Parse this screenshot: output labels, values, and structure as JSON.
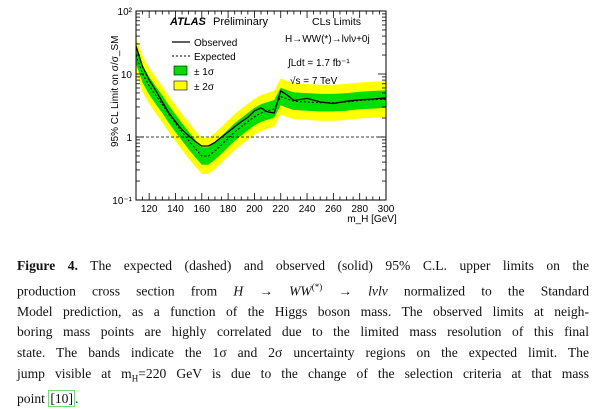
{
  "figure": {
    "experiment": "ATLAS",
    "status": "Preliminary",
    "method": "CLs Limits",
    "process": "H→WW(*)→lνlν+0j",
    "luminosity": "∫Ldt = 1.7 fb⁻¹",
    "energy": "√s = 7 TeV"
  },
  "chart_data": {
    "type": "line",
    "xlabel": "m_H [GeV]",
    "ylabel": "95% CL Limit on σ/σ_SM",
    "xlim": [
      110,
      300
    ],
    "ylim": [
      0.1,
      100
    ],
    "yscale": "log",
    "x_ticks": [
      120,
      140,
      160,
      180,
      200,
      220,
      240,
      260,
      280,
      300
    ],
    "y_ticks": [
      {
        "value": 0.1,
        "label": "10⁻¹"
      },
      {
        "value": 1,
        "label": "1"
      },
      {
        "value": 10,
        "label": "10"
      },
      {
        "value": 100,
        "label": "10²"
      }
    ],
    "reference_line": 1,
    "legend_position": "top-left",
    "legend": [
      "Observed",
      "Expected",
      "± 1σ",
      "± 2σ"
    ],
    "colors": {
      "observed": "#000000",
      "expected": "#000000",
      "band_1sigma": "#00dd00",
      "band_2sigma": "#ffff00"
    },
    "x": [
      110,
      115,
      120,
      125,
      130,
      135,
      140,
      145,
      150,
      155,
      160,
      165,
      170,
      175,
      180,
      185,
      190,
      195,
      200,
      205,
      210,
      215,
      220,
      225,
      230,
      240,
      250,
      260,
      270,
      280,
      290,
      300
    ],
    "series": [
      {
        "name": "Observed",
        "style": "solid",
        "values": [
          28,
          13,
          8,
          5.5,
          3.6,
          2.4,
          1.75,
          1.3,
          1.05,
          0.85,
          0.72,
          0.72,
          0.82,
          1.0,
          1.2,
          1.45,
          1.75,
          2.05,
          2.6,
          2.9,
          2.5,
          2.4,
          5.4,
          4.6,
          3.8,
          4.1,
          3.6,
          3.4,
          3.7,
          3.9,
          4.0,
          4.2
        ]
      },
      {
        "name": "Expected",
        "style": "dashed",
        "values": [
          20,
          10,
          6.5,
          4.6,
          3.3,
          2.3,
          1.65,
          1.2,
          0.88,
          0.66,
          0.5,
          0.5,
          0.6,
          0.75,
          0.95,
          1.2,
          1.45,
          1.75,
          2.1,
          2.4,
          2.6,
          2.8,
          4.4,
          4.0,
          3.7,
          3.6,
          3.5,
          3.5,
          3.6,
          3.8,
          3.9,
          4.0
        ]
      }
    ],
    "bands": {
      "sigma1_factor": 1.38,
      "sigma2_factor": 1.93
    }
  },
  "caption": {
    "lines": [
      {
        "parts": [
          {
            "t": "Figure 4.",
            "cls": "lead"
          },
          {
            "t": "  The expected (dashed) and observed (solid) 95% C.L. upper limits on the"
          }
        ]
      },
      {
        "parts": [
          {
            "t": "production cross section from "
          },
          {
            "t": "H → WW",
            "cls": "math"
          },
          {
            "t": "(*)",
            "sup": true
          },
          {
            "t": " → "
          },
          {
            "t": "lνlν",
            "cls": "math"
          },
          {
            "t": " normalized to the Standard"
          }
        ]
      },
      {
        "parts": [
          {
            "t": "Model prediction, as a function of the Higgs boson mass. The observed limits at neigh-"
          }
        ]
      },
      {
        "parts": [
          {
            "t": "boring mass points are highly correlated due to the limited mass resolution of this final"
          }
        ]
      },
      {
        "parts": [
          {
            "t": "state. The bands indicate the 1σ and 2σ uncertainty regions on the expected limit. The"
          }
        ]
      },
      {
        "parts": [
          {
            "t": "jump visible at m"
          },
          {
            "t": "H",
            "sub": true
          },
          {
            "t": "=220 GeV is due to the change of the selection criteria at that mass"
          }
        ]
      },
      {
        "parts": [
          {
            "t": "point "
          },
          {
            "t": "[10]",
            "cls": "cite"
          },
          {
            "t": "."
          }
        ],
        "last": true
      }
    ]
  }
}
